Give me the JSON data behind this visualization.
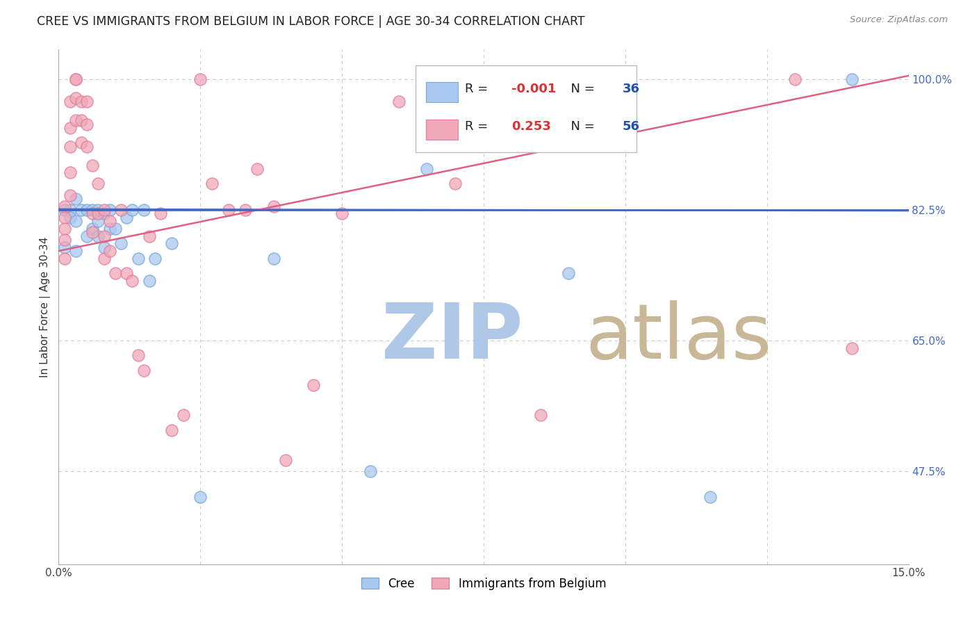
{
  "title": "CREE VS IMMIGRANTS FROM BELGIUM IN LABOR FORCE | AGE 30-34 CORRELATION CHART",
  "source_text": "Source: ZipAtlas.com",
  "ylabel": "In Labor Force | Age 30-34",
  "xlim": [
    0.0,
    0.15
  ],
  "ylim": [
    0.35,
    1.04
  ],
  "xticks": [
    0.0,
    0.025,
    0.05,
    0.075,
    0.1,
    0.125,
    0.15
  ],
  "xticklabels": [
    "0.0%",
    "",
    "",
    "",
    "",
    "",
    "15.0%"
  ],
  "ytick_positions": [
    0.475,
    0.65,
    0.825,
    1.0
  ],
  "ytick_labels": [
    "47.5%",
    "65.0%",
    "82.5%",
    "100.0%"
  ],
  "hline_y": 0.825,
  "hline_color": "#4169C8",
  "blue_R": "-0.001",
  "blue_N": "36",
  "pink_R": "0.253",
  "pink_N": "56",
  "blue_color": "#A8C8F0",
  "pink_color": "#F0A8B8",
  "blue_edge_color": "#7AAAD8",
  "pink_edge_color": "#E080A0",
  "blue_line_color": "#4169C8",
  "pink_line_color": "#E06080",
  "grid_color": "#CCCCCC",
  "watermark_zip_color": "#B0C8E8",
  "watermark_atlas_color": "#C8B898",
  "legend_R_color": "#E03030",
  "legend_N_color": "#2050B0",
  "blue_scatter_x": [
    0.001,
    0.001,
    0.002,
    0.002,
    0.003,
    0.003,
    0.003,
    0.004,
    0.005,
    0.005,
    0.006,
    0.006,
    0.007,
    0.007,
    0.007,
    0.008,
    0.008,
    0.009,
    0.009,
    0.01,
    0.011,
    0.012,
    0.013,
    0.014,
    0.015,
    0.016,
    0.017,
    0.02,
    0.025,
    0.038,
    0.055,
    0.065,
    0.09,
    0.115,
    0.14
  ],
  "blue_scatter_y": [
    0.825,
    0.775,
    0.825,
    0.815,
    0.84,
    0.81,
    0.77,
    0.825,
    0.825,
    0.79,
    0.825,
    0.8,
    0.825,
    0.81,
    0.79,
    0.82,
    0.775,
    0.825,
    0.8,
    0.8,
    0.78,
    0.815,
    0.825,
    0.76,
    0.825,
    0.73,
    0.76,
    0.78,
    0.44,
    0.76,
    0.475,
    0.88,
    0.74,
    0.44,
    1.0
  ],
  "pink_scatter_x": [
    0.001,
    0.001,
    0.001,
    0.001,
    0.001,
    0.002,
    0.002,
    0.002,
    0.002,
    0.002,
    0.003,
    0.003,
    0.003,
    0.003,
    0.004,
    0.004,
    0.004,
    0.005,
    0.005,
    0.005,
    0.006,
    0.006,
    0.006,
    0.007,
    0.007,
    0.008,
    0.008,
    0.008,
    0.009,
    0.009,
    0.01,
    0.011,
    0.012,
    0.013,
    0.014,
    0.015,
    0.016,
    0.018,
    0.02,
    0.022,
    0.025,
    0.027,
    0.03,
    0.033,
    0.035,
    0.038,
    0.04,
    0.045,
    0.05,
    0.06,
    0.07,
    0.085,
    0.13,
    0.14
  ],
  "pink_scatter_y": [
    0.83,
    0.815,
    0.8,
    0.785,
    0.76,
    0.97,
    0.935,
    0.91,
    0.875,
    0.845,
    1.0,
    1.0,
    0.975,
    0.945,
    0.97,
    0.945,
    0.915,
    0.97,
    0.94,
    0.91,
    0.885,
    0.82,
    0.795,
    0.86,
    0.82,
    0.825,
    0.79,
    0.76,
    0.81,
    0.77,
    0.74,
    0.825,
    0.74,
    0.73,
    0.63,
    0.61,
    0.79,
    0.82,
    0.53,
    0.55,
    1.0,
    0.86,
    0.825,
    0.825,
    0.88,
    0.83,
    0.49,
    0.59,
    0.82,
    0.97,
    0.86,
    0.55,
    1.0,
    0.64
  ],
  "blue_trend_x": [
    0.0,
    0.15
  ],
  "blue_trend_y": [
    0.826,
    0.824
  ],
  "pink_trend_x": [
    0.0,
    0.15
  ],
  "pink_trend_y": [
    0.77,
    1.005
  ]
}
